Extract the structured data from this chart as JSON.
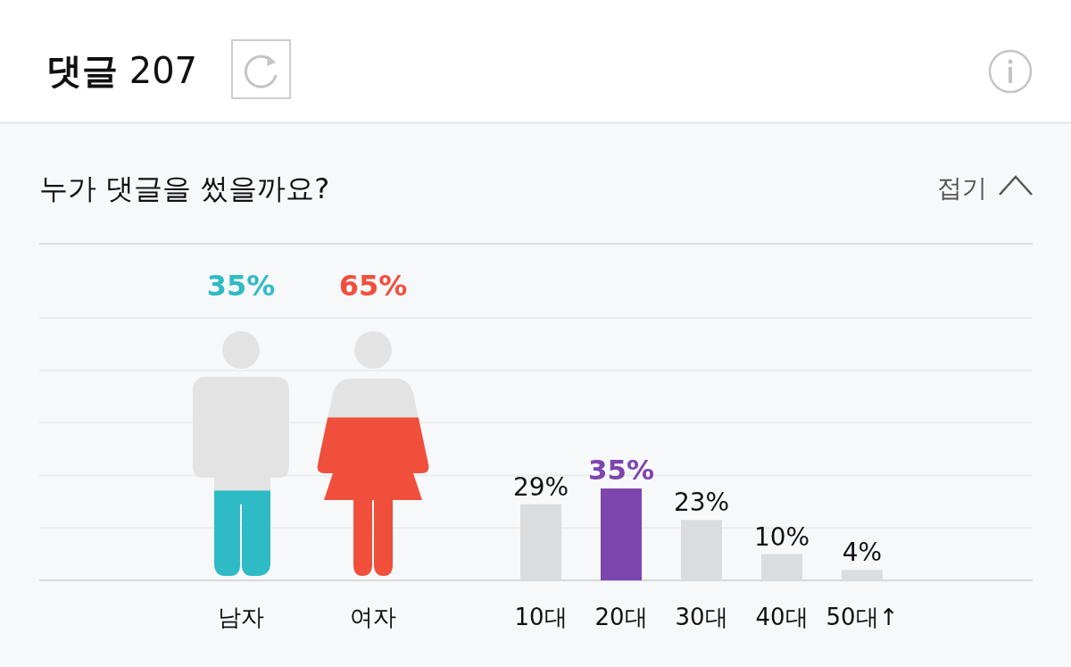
{
  "chart_data": [
    {
      "type": "other",
      "title": "댓글 207",
      "subtitle": "누가 댓글을 썼을까요?",
      "annotations": [
        "접기"
      ]
    },
    {
      "type": "bar",
      "categories": [
        "남자",
        "여자"
      ],
      "values": [
        35,
        65
      ],
      "colors": [
        "#2fbbc5",
        "#f04f3c"
      ],
      "value_labels": [
        "35%",
        "65%"
      ],
      "tick_labels": "x"
    },
    {
      "type": "bar",
      "categories": [
        "10대",
        "20대",
        "30대",
        "40대",
        "50대↑"
      ],
      "values": [
        29,
        35,
        23,
        10,
        4
      ],
      "colors": [
        "#d9dde0",
        "#7d45ae",
        "#d9dde0",
        "#d9dde0",
        "#d9dde0"
      ],
      "value_labels": [
        "29%",
        "35%",
        "23%",
        "10%",
        "4%"
      ],
      "ylim": [
        0,
        100
      ],
      "yticks": [
        {
          "value": 0,
          "label": null
        },
        {
          "value": 20,
          "label": null
        },
        {
          "value": 40,
          "label": null
        },
        {
          "value": 60,
          "label": null
        },
        {
          "value": 80,
          "label": null
        },
        {
          "value": 100,
          "label": null
        }
      ],
      "grid": "y",
      "tick_labels": "x"
    }
  ]
}
